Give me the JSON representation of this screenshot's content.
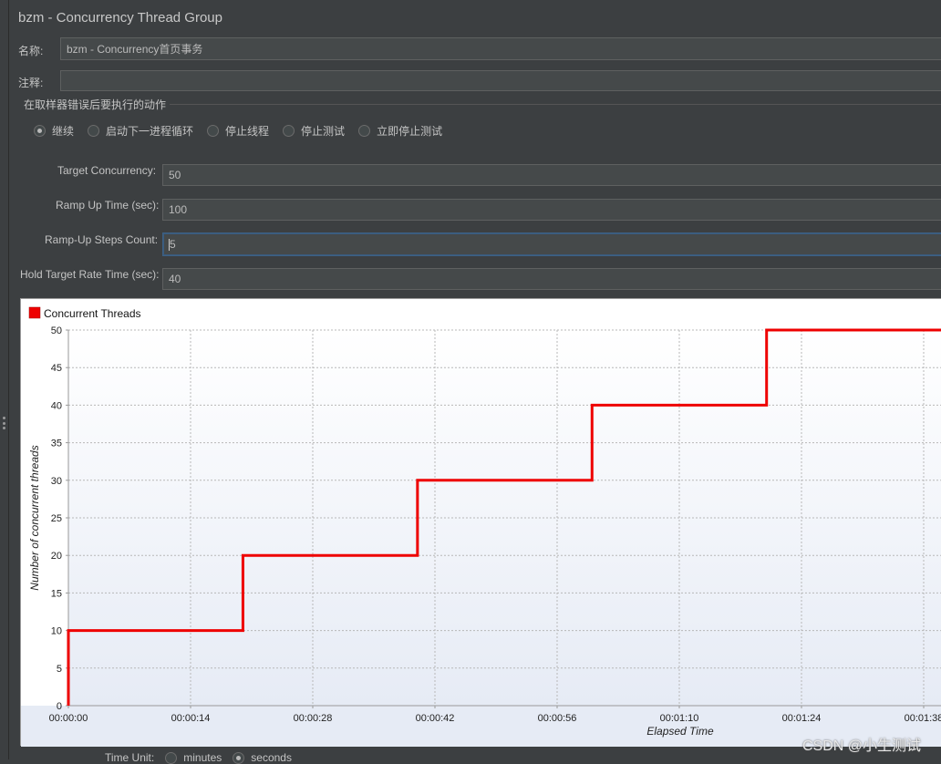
{
  "panel": {
    "title": "bzm - Concurrency Thread Group"
  },
  "name_field": {
    "label": "名称:",
    "value": "bzm - Concurrency首页事务"
  },
  "comment_field": {
    "label": "注释:",
    "value": ""
  },
  "error_action": {
    "label": "在取样器错误后要执行的动作",
    "options": [
      {
        "label": "继续",
        "checked": true
      },
      {
        "label": "启动下一进程循环",
        "checked": false
      },
      {
        "label": "停止线程",
        "checked": false
      },
      {
        "label": "停止测试",
        "checked": false
      },
      {
        "label": "立即停止测试",
        "checked": false
      }
    ]
  },
  "params": {
    "target_concurrency": {
      "label": "Target Concurrency:",
      "value": "50"
    },
    "ramp_up_time": {
      "label": "Ramp Up Time (sec):",
      "value": "100"
    },
    "ramp_up_steps": {
      "label": "Ramp-Up Steps Count:",
      "value": "5"
    },
    "hold_time": {
      "label": "Hold Target Rate Time (sec):",
      "value": "40"
    }
  },
  "time_unit": {
    "label": "Time Unit:",
    "options": [
      "minutes",
      "seconds"
    ],
    "selected": "seconds"
  },
  "watermark": "CSDN @小生测试",
  "chart_data": {
    "type": "line",
    "series": [
      {
        "name": "Concurrent Threads",
        "color": "#ee0000",
        "step": true,
        "x_seconds": [
          0,
          0,
          20,
          20,
          40,
          40,
          60,
          60,
          80,
          80,
          100
        ],
        "values": [
          0,
          10,
          10,
          20,
          20,
          30,
          30,
          40,
          40,
          50,
          50
        ]
      }
    ],
    "xlabel": "Elapsed Time",
    "ylabel": "Number of concurrent threads",
    "x_ticks": [
      "00:00:00",
      "00:00:14",
      "00:00:28",
      "00:00:42",
      "00:00:56",
      "00:01:10",
      "00:01:24",
      "00:01:38"
    ],
    "x_tick_seconds": [
      0,
      14,
      28,
      42,
      56,
      70,
      84,
      98
    ],
    "y_ticks": [
      0,
      5,
      10,
      15,
      20,
      25,
      30,
      35,
      40,
      45,
      50
    ],
    "ylim": [
      0,
      50
    ],
    "xlim": [
      0,
      100
    ],
    "grid": true,
    "legend_position": "top-left"
  }
}
